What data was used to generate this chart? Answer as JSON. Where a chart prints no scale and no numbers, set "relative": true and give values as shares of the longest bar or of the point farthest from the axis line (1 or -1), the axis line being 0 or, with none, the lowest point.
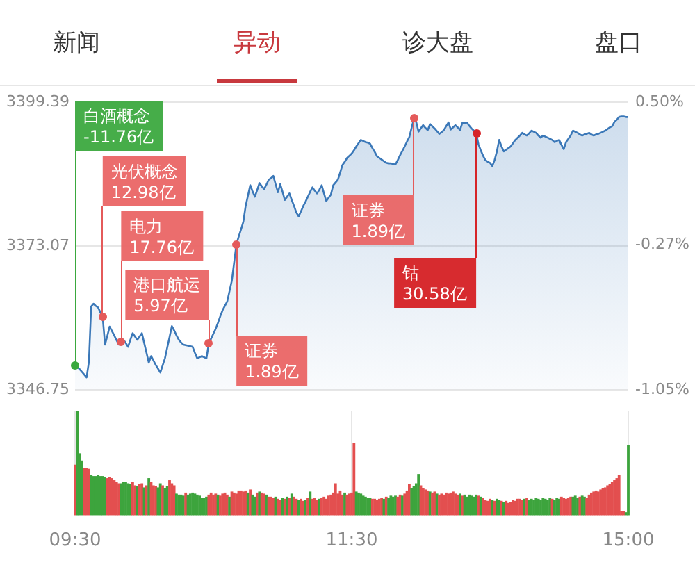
{
  "chart_data": [
    {
      "type": "other",
      "annotations": [
        "新闻",
        "异动",
        "诊大盘",
        "盘口"
      ]
    },
    {
      "type": "area",
      "color": "#3b78b8",
      "categories": [
        null,
        null,
        null,
        null,
        null,
        null,
        null,
        null,
        null,
        null,
        null,
        null,
        null,
        null,
        null,
        null,
        null,
        null,
        null,
        null,
        null,
        null,
        null,
        null,
        null,
        null,
        null,
        null,
        null,
        null,
        null,
        null,
        null,
        null,
        null,
        null,
        null,
        null,
        null,
        null,
        null,
        null,
        null,
        null,
        null,
        null,
        null,
        null,
        null,
        null,
        null,
        null,
        null,
        null,
        null,
        null,
        null,
        null,
        null,
        null,
        null,
        null,
        null,
        null,
        null,
        null,
        null,
        null,
        null,
        null,
        null,
        null,
        null,
        null,
        null,
        null,
        null,
        null,
        null,
        null,
        null,
        null,
        null,
        null,
        null,
        null,
        null,
        null,
        null,
        null,
        null,
        null,
        null,
        null,
        null,
        null,
        null,
        null,
        null,
        null,
        null,
        null,
        null,
        null,
        null,
        null,
        null,
        null,
        null,
        null,
        null,
        null,
        null,
        null,
        null,
        null,
        null,
        null,
        null,
        null,
        null,
        null,
        null,
        null,
        null,
        null,
        null,
        null,
        null,
        null,
        null,
        null,
        null,
        null,
        null,
        null,
        null,
        null,
        null,
        null,
        null,
        null,
        null,
        null,
        null,
        null,
        null,
        null,
        null,
        null,
        null,
        null,
        null,
        null,
        null,
        null,
        null,
        null,
        null,
        null,
        null,
        null,
        null,
        null,
        null,
        null,
        null,
        null,
        null,
        null,
        null,
        null,
        null,
        null,
        null,
        null,
        null,
        null,
        null,
        null,
        null,
        null,
        null,
        null,
        null,
        null,
        null,
        null,
        null,
        null,
        null,
        null,
        null,
        null,
        null,
        null,
        null,
        null,
        null,
        null,
        null,
        null,
        null,
        null,
        null,
        null,
        null,
        null,
        null,
        null,
        null,
        null,
        null,
        null,
        null,
        null,
        null,
        null,
        null,
        null,
        null,
        null,
        null,
        null,
        null,
        null,
        null,
        null,
        null,
        null,
        null,
        null,
        null,
        null,
        null,
        null,
        null,
        null,
        null,
        null,
        null
      ],
      "values": [
        3351.3,
        3350.9,
        3350.5,
        3350.0,
        3349.5,
        3349.0,
        3351.8,
        3362.0,
        3362.5,
        3362.1,
        3361.8,
        3360.9,
        3360.0,
        3355.0,
        3356.6,
        3358.3,
        3357.5,
        3356.7,
        3355.8,
        3355.0,
        3355.5,
        3355.9,
        3355.3,
        3354.6,
        3355.9,
        3357.1,
        3356.5,
        3355.9,
        3356.5,
        3357.1,
        3355.3,
        3353.5,
        3351.7,
        3352.9,
        3352.1,
        3351.3,
        3350.6,
        3349.9,
        3351.2,
        3352.5,
        3354.5,
        3356.4,
        3358.4,
        3357.6,
        3356.7,
        3355.9,
        3355.4,
        3355.0,
        3354.9,
        3354.8,
        3354.7,
        3354.6,
        3353.5,
        3352.5,
        3352.7,
        3352.9,
        3352.7,
        3352.5,
        3355.2,
        3356.1,
        3357.0,
        3357.9,
        3359.0,
        3360.2,
        3361.3,
        3362.1,
        3362.9,
        3364.8,
        3366.7,
        3370.0,
        3373.4,
        3374.8,
        3376.1,
        3377.5,
        3380.4,
        3382.3,
        3384.2,
        3383.1,
        3382.1,
        3383.3,
        3384.6,
        3384.0,
        3383.5,
        3384.3,
        3385.2,
        3385.5,
        3385.9,
        3384.4,
        3382.9,
        3384.4,
        3383.0,
        3381.5,
        3382.1,
        3382.7,
        3381.5,
        3380.4,
        3379.2,
        3378.5,
        3379.4,
        3380.4,
        3381.2,
        3382.1,
        3383.0,
        3383.8,
        3383.2,
        3382.7,
        3383.4,
        3384.2,
        3382.7,
        3381.3,
        3381.9,
        3382.5,
        3384.2,
        3384.7,
        3385.2,
        3386.5,
        3387.9,
        3388.5,
        3389.2,
        3389.6,
        3390.0,
        3390.6,
        3391.3,
        3391.9,
        3392.5,
        3392.3,
        3392.1,
        3392.0,
        3391.8,
        3391.0,
        3390.3,
        3389.5,
        3389.2,
        3388.9,
        3388.6,
        3388.3,
        3388.2,
        3388.2,
        3388.1,
        3388.0,
        3388.8,
        3389.7,
        3390.5,
        3391.3,
        3392.2,
        3393.0,
        3394.7,
        3396.4,
        3395.8,
        3394.0,
        3394.6,
        3395.2,
        3394.7,
        3394.3,
        3395.4,
        3395.0,
        3394.6,
        3394.1,
        3393.6,
        3393.9,
        3394.3,
        3395.0,
        3395.7,
        3394.4,
        3394.8,
        3395.2,
        3394.8,
        3394.3,
        3395.6,
        3395.6,
        3395.7,
        3395.1,
        3394.6,
        3394.2,
        3393.8,
        3391.7,
        3390.6,
        3389.6,
        3388.8,
        3388.5,
        3388.3,
        3387.7,
        3388.8,
        3390.4,
        3392.5,
        3391.3,
        3390.4,
        3390.7,
        3391.0,
        3391.3,
        3391.9,
        3392.5,
        3392.9,
        3393.3,
        3393.8,
        3393.5,
        3393.3,
        3393.7,
        3394.2,
        3394.0,
        3393.8,
        3393.3,
        3392.9,
        3393.3,
        3393.1,
        3392.9,
        3392.7,
        3392.5,
        3392.1,
        3392.3,
        3392.5,
        3391.6,
        3390.8,
        3392.1,
        3392.7,
        3393.3,
        3394.2,
        3394.0,
        3393.8,
        3393.5,
        3393.3,
        3393.5,
        3393.6,
        3393.8,
        3393.5,
        3393.3,
        3393.5,
        3393.6,
        3393.8,
        3394.0,
        3394.2,
        3394.5,
        3394.8,
        3395.0,
        3395.8,
        3396.2,
        3396.7,
        3396.8,
        3396.8,
        3396.7,
        3396.7
      ],
      "ylim": [
        3346.75,
        3399.39
      ],
      "yticks": [
        3346.75,
        3373.07,
        3399.39
      ],
      "y2lim": [
        -1.05,
        0.5
      ],
      "y2ticks": [
        {
          "value": -1.05,
          "label": "-1.05%"
        },
        {
          "value": -0.27,
          "label": "-0.27%"
        },
        {
          "value": 0.5,
          "label": "0.50%"
        }
      ],
      "grid": "y",
      "tick_labels": "y",
      "annotations": [
        "白酒概念\n-11.76亿",
        "光伏概念\n12.98亿",
        "电力\n17.76亿",
        "港口航运\n5.97亿",
        "证券\n1.89亿",
        "证券\n1.89亿",
        "钴\n30.58亿"
      ]
    },
    {
      "type": "bar",
      "relative": true,
      "categories": [
        "09:30",
        null,
        null,
        null,
        null,
        null,
        null,
        null,
        null,
        null,
        null,
        null,
        null,
        null,
        null,
        null,
        null,
        null,
        null,
        null,
        null,
        null,
        null,
        null,
        null,
        null,
        null,
        null,
        null,
        null,
        null,
        null,
        null,
        null,
        null,
        null,
        null,
        null,
        null,
        null,
        null,
        null,
        null,
        null,
        null,
        null,
        null,
        null,
        null,
        null,
        null,
        null,
        null,
        null,
        null,
        null,
        null,
        null,
        null,
        null,
        null,
        null,
        null,
        null,
        null,
        null,
        null,
        null,
        null,
        null,
        null,
        null,
        null,
        null,
        null,
        null,
        null,
        null,
        null,
        null,
        null,
        null,
        null,
        null,
        null,
        null,
        null,
        null,
        null,
        null,
        null,
        null,
        null,
        null,
        null,
        null,
        null,
        null,
        null,
        null,
        null,
        null,
        null,
        null,
        null,
        null,
        null,
        null,
        null,
        null,
        null,
        null,
        null,
        null,
        null,
        null,
        null,
        null,
        null,
        null,
        "11:30",
        null,
        null,
        null,
        null,
        null,
        null,
        null,
        null,
        null,
        null,
        null,
        null,
        null,
        null,
        null,
        null,
        null,
        null,
        null,
        null,
        null,
        null,
        null,
        null,
        null,
        null,
        null,
        null,
        null,
        null,
        null,
        null,
        null,
        null,
        null,
        null,
        null,
        null,
        null,
        null,
        null,
        null,
        null,
        null,
        null,
        null,
        null,
        null,
        null,
        null,
        null,
        null,
        null,
        null,
        null,
        null,
        null,
        null,
        null,
        null,
        null,
        null,
        null,
        null,
        null,
        null,
        null,
        null,
        null,
        null,
        null,
        null,
        null,
        null,
        null,
        null,
        null,
        null,
        null,
        null,
        null,
        null,
        null,
        null,
        null,
        null,
        null,
        null,
        null,
        null,
        null,
        null,
        null,
        null,
        null,
        null,
        null,
        null,
        null,
        null,
        null,
        null,
        null,
        null,
        null,
        null,
        null,
        null,
        null,
        null,
        null,
        null,
        null,
        null,
        null,
        null,
        null,
        null,
        null,
        "15:00"
      ],
      "values": [
        0.48,
        1,
        0.59,
        0.52,
        0.45,
        0.45,
        0.44,
        0.38,
        0.37,
        0.37,
        0.38,
        0.37,
        0.37,
        0.36,
        0.35,
        0.36,
        0.35,
        0.33,
        0.31,
        0.3,
        0.3,
        0.31,
        0.31,
        0.3,
        0.29,
        0.31,
        0.28,
        0.27,
        0.29,
        0.3,
        0.26,
        0.28,
        0.35,
        0.31,
        0.28,
        0.27,
        0.26,
        0.3,
        0.28,
        0.25,
        0.27,
        0.33,
        0.3,
        0.28,
        0.2,
        0.19,
        0.19,
        0.18,
        0.21,
        0.19,
        0.2,
        0.21,
        0.2,
        0.19,
        0.18,
        0.16,
        0.16,
        0.17,
        0.19,
        0.21,
        0.19,
        0.2,
        0.19,
        0.18,
        0.2,
        0.21,
        0.19,
        0.17,
        0.22,
        0.21,
        0.2,
        0.23,
        0.23,
        0.22,
        0.23,
        0.21,
        0.24,
        0.19,
        0.17,
        0.21,
        0.22,
        0.21,
        0.2,
        0.19,
        0.17,
        0.17,
        0.16,
        0.17,
        0.15,
        0.14,
        0.16,
        0.15,
        0.17,
        0.16,
        0.2,
        0.17,
        0.15,
        0.14,
        0.15,
        0.13,
        0.14,
        0.16,
        0.22,
        0.15,
        0.16,
        0.14,
        0.15,
        0.16,
        0.17,
        0.15,
        0.18,
        0.19,
        0.21,
        0.3,
        0.2,
        0.23,
        0.19,
        0.21,
        0.19,
        0.2,
        0.21,
        0.69,
        0.22,
        0.21,
        0.2,
        0.18,
        0.17,
        0.16,
        0.16,
        0.15,
        0.15,
        0.14,
        0.15,
        0.16,
        0.15,
        0.17,
        0.16,
        0.18,
        0.17,
        0.18,
        0.17,
        0.19,
        0.18,
        0.2,
        0.23,
        0.29,
        0.25,
        0.27,
        0.3,
        0.39,
        0.28,
        0.25,
        0.24,
        0.23,
        0.22,
        0.21,
        0.22,
        0.2,
        0.19,
        0.2,
        0.19,
        0.21,
        0.2,
        0.21,
        0.22,
        0.2,
        0.19,
        0.2,
        0.18,
        0.19,
        0.17,
        0.19,
        0.18,
        0.17,
        0.19,
        0.18,
        0.17,
        0.16,
        0.14,
        0.13,
        0.15,
        0.14,
        0.13,
        0.15,
        0.14,
        0.13,
        0.12,
        0.13,
        0.11,
        0.12,
        0.14,
        0.13,
        0.15,
        0.15,
        0.14,
        0.15,
        0.16,
        0.14,
        0.15,
        0.14,
        0.16,
        0.15,
        0.14,
        0.16,
        0.15,
        0.14,
        0.16,
        0.15,
        0.14,
        0.16,
        0.15,
        0.17,
        0.16,
        0.15,
        0.16,
        0.17,
        0.17,
        0.18,
        0.16,
        0.17,
        0.18,
        0.17,
        0.16,
        0.19,
        0.21,
        0.22,
        0.23,
        0.22,
        0.24,
        0.25,
        0.26,
        0.28,
        0.29,
        0.31,
        0.33,
        0.35,
        0.38,
        0.03,
        0.03,
        0.02,
        0.67
      ],
      "colors": [
        "#e34f4f",
        "#3da43d",
        "#3da43d",
        "#3da43d",
        "#e34f4f",
        "#e34f4f",
        "#e34f4f",
        "#3da43d",
        "#3da43d",
        "#3da43d",
        "#3da43d",
        "#3da43d",
        "#3da43d",
        "#3da43d",
        "#e34f4f",
        "#e34f4f",
        "#e34f4f",
        "#e34f4f",
        "#e34f4f",
        "#e34f4f",
        "#3da43d",
        "#3da43d",
        "#3da43d",
        "#3da43d",
        "#3da43d",
        "#e34f4f",
        "#e34f4f",
        "#3da43d",
        "#e34f4f",
        "#e34f4f",
        "#3da43d",
        "#e34f4f",
        "#3da43d",
        "#e34f4f",
        "#e34f4f",
        "#e34f4f",
        "#3da43d",
        "#3da43d",
        "#e34f4f",
        "#3da43d",
        "#3da43d",
        "#e34f4f",
        "#e34f4f",
        "#e34f4f",
        "#3da43d",
        "#3da43d",
        "#3da43d",
        "#3da43d",
        "#e34f4f",
        "#3da43d",
        "#3da43d",
        "#3da43d",
        "#3da43d",
        "#3da43d",
        "#3da43d",
        "#3da43d",
        "#3da43d",
        "#3da43d",
        "#e34f4f",
        "#e34f4f",
        "#e34f4f",
        "#e34f4f",
        "#3da43d",
        "#e34f4f",
        "#e34f4f",
        "#e34f4f",
        "#e34f4f",
        "#3da43d",
        "#e34f4f",
        "#e34f4f",
        "#e34f4f",
        "#e34f4f",
        "#e34f4f",
        "#e34f4f",
        "#e34f4f",
        "#3da43d",
        "#e34f4f",
        "#3da43d",
        "#3da43d",
        "#e34f4f",
        "#3da43d",
        "#e34f4f",
        "#e34f4f",
        "#3da43d",
        "#e34f4f",
        "#e34f4f",
        "#e34f4f",
        "#3da43d",
        "#e34f4f",
        "#e34f4f",
        "#3da43d",
        "#e34f4f",
        "#3da43d",
        "#e34f4f",
        "#3da43d",
        "#e34f4f",
        "#e34f4f",
        "#3da43d",
        "#e34f4f",
        "#e34f4f",
        "#3da43d",
        "#e34f4f",
        "#3da43d",
        "#e34f4f",
        "#e34f4f",
        "#e34f4f",
        "#3da43d",
        "#e34f4f",
        "#e34f4f",
        "#e34f4f",
        "#e34f4f",
        "#e34f4f",
        "#e34f4f",
        "#e34f4f",
        "#e34f4f",
        "#e34f4f",
        "#e34f4f",
        "#3da43d",
        "#e34f4f",
        "#e34f4f",
        "#e34f4f",
        "#e34f4f",
        "#3da43d",
        "#3da43d",
        "#3da43d",
        "#3da43d",
        "#3da43d",
        "#3da43d",
        "#3da43d",
        "#e34f4f",
        "#e34f4f",
        "#e34f4f",
        "#e34f4f",
        "#e34f4f",
        "#3da43d",
        "#e34f4f",
        "#3da43d",
        "#3da43d",
        "#3da43d",
        "#3da43d",
        "#e34f4f",
        "#e34f4f",
        "#3da43d",
        "#e34f4f",
        "#e34f4f",
        "#e34f4f",
        "#3da43d",
        "#3da43d",
        "#3da43d",
        "#3da43d",
        "#e34f4f",
        "#e34f4f",
        "#e34f4f",
        "#e34f4f",
        "#3da43d",
        "#e34f4f",
        "#e34f4f",
        "#3da43d",
        "#e34f4f",
        "#e34f4f",
        "#e34f4f",
        "#e34f4f",
        "#e34f4f",
        "#e34f4f",
        "#e34f4f",
        "#e34f4f",
        "#e34f4f",
        "#3da43d",
        "#e34f4f",
        "#3da43d",
        "#3da43d",
        "#3da43d",
        "#3da43d",
        "#3da43d",
        "#3da43d",
        "#e34f4f",
        "#3da43d",
        "#e34f4f",
        "#e34f4f",
        "#e34f4f",
        "#e34f4f",
        "#3da43d",
        "#e34f4f",
        "#3da43d",
        "#3da43d",
        "#e34f4f",
        "#3da43d",
        "#e34f4f",
        "#e34f4f",
        "#e34f4f",
        "#e34f4f",
        "#e34f4f",
        "#e34f4f",
        "#e34f4f",
        "#e34f4f",
        "#3da43d",
        "#e34f4f",
        "#3da43d",
        "#3da43d",
        "#3da43d",
        "#3da43d",
        "#3da43d",
        "#3da43d",
        "#3da43d",
        "#3da43d",
        "#3da43d",
        "#3da43d",
        "#e34f4f",
        "#3da43d",
        "#3da43d",
        "#3da43d",
        "#e34f4f",
        "#e34f4f",
        "#e34f4f",
        "#e34f4f",
        "#e34f4f",
        "#3da43d",
        "#3da43d",
        "#3da43d",
        "#e34f4f",
        "#3da43d",
        "#3da43d",
        "#e34f4f",
        "#e34f4f",
        "#e34f4f",
        "#e34f4f",
        "#e34f4f",
        "#e34f4f",
        "#e34f4f",
        "#e34f4f",
        "#e34f4f",
        "#e34f4f",
        "#e34f4f",
        "#e34f4f",
        "#e34f4f",
        "#e34f4f",
        "#e34f4f",
        "#e34f4f",
        "#e34f4f",
        "#3da43d",
        "#3da43d"
      ],
      "grid": "x",
      "tick_labels": "x"
    }
  ]
}
